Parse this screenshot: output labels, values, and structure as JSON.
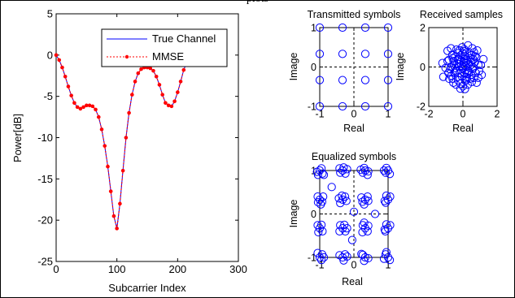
{
  "caption": "plots",
  "chart_data": [
    {
      "type": "line",
      "xlabel": "Subcarrier Index",
      "ylabel": "Power[dB]",
      "xlim": [
        0,
        300
      ],
      "ylim": [
        -25,
        5
      ],
      "xticks": [
        "0",
        "100",
        "200",
        "300"
      ],
      "yticks": [
        "5",
        "0",
        "-5",
        "-10",
        "-15",
        "-20",
        "-25"
      ],
      "legend_position": "top-right",
      "series": [
        {
          "name": "True Channel",
          "color": "#0000ff",
          "style": "solid",
          "x": [
            0,
            5,
            10,
            15,
            20,
            25,
            30,
            35,
            40,
            45,
            50,
            55,
            60,
            65,
            70,
            75,
            80,
            85,
            90,
            95,
            100,
            105,
            110,
            115,
            120,
            125,
            130,
            135,
            140,
            145,
            150,
            155,
            160,
            165,
            170,
            175,
            180,
            185,
            190,
            195,
            200,
            205,
            210,
            215,
            220
          ],
          "y": [
            0,
            -0.6,
            -1.5,
            -2.6,
            -3.8,
            -4.9,
            -5.8,
            -6.3,
            -6.5,
            -6.3,
            -6.1,
            -6.1,
            -6.2,
            -6.6,
            -7.5,
            -9,
            -11,
            -13.5,
            -16.5,
            -19.5,
            -21,
            -18,
            -14,
            -10,
            -7,
            -4.8,
            -3.2,
            -2.2,
            -1.7,
            -1.5,
            -1.5,
            -1.6,
            -1.9,
            -2.6,
            -3.6,
            -4.8,
            -5.8,
            -6.1,
            -6.2,
            -5.6,
            -4.5,
            -3.2,
            -1.8,
            -0.9,
            0
          ]
        },
        {
          "name": "MMSE",
          "color": "#ff0000",
          "style": "dotted-with-markers",
          "x": [
            0,
            5,
            10,
            15,
            20,
            25,
            30,
            35,
            40,
            45,
            50,
            55,
            60,
            65,
            70,
            75,
            80,
            85,
            90,
            95,
            100,
            105,
            110,
            115,
            120,
            125,
            130,
            135,
            140,
            145,
            150,
            155,
            160,
            165,
            170,
            175,
            180,
            185,
            190,
            195,
            200,
            205,
            210,
            215,
            220
          ],
          "y": [
            0,
            -0.6,
            -1.5,
            -2.6,
            -3.8,
            -4.9,
            -5.8,
            -6.3,
            -6.5,
            -6.3,
            -6.1,
            -6.1,
            -6.2,
            -6.6,
            -7.5,
            -9,
            -11,
            -13.5,
            -16.5,
            -19.5,
            -21,
            -18,
            -14,
            -10,
            -7,
            -4.8,
            -3.2,
            -2.2,
            -1.7,
            -1.5,
            -1.5,
            -1.6,
            -1.9,
            -2.6,
            -3.6,
            -4.8,
            -5.8,
            -6.1,
            -6.2,
            -5.6,
            -4.5,
            -3.2,
            -1.8,
            -0.9,
            0
          ]
        }
      ]
    },
    {
      "type": "scatter",
      "title": "Transmitted symbols",
      "xlabel": "Real",
      "ylabel": "Image",
      "xlim": [
        -1,
        1
      ],
      "ylim": [
        -1,
        1
      ],
      "xticks": [
        "-1",
        "0",
        "1"
      ],
      "yticks": [
        "1",
        "0",
        "-1"
      ],
      "color": "#0000ff",
      "points": [
        [
          -1,
          1
        ],
        [
          -0.333,
          1
        ],
        [
          0.333,
          1
        ],
        [
          1,
          1
        ],
        [
          -1,
          0.333
        ],
        [
          -0.333,
          0.333
        ],
        [
          0.333,
          0.333
        ],
        [
          1,
          0.333
        ],
        [
          -1,
          -0.333
        ],
        [
          -0.333,
          -0.333
        ],
        [
          0.333,
          -0.333
        ],
        [
          1,
          -0.333
        ],
        [
          -1,
          -1
        ],
        [
          -0.333,
          -1
        ],
        [
          0.333,
          -1
        ],
        [
          1,
          -1
        ]
      ]
    },
    {
      "type": "scatter",
      "title": "Received samples",
      "xlabel": "Real",
      "ylabel": "Image",
      "xlim": [
        -2,
        2
      ],
      "ylim": [
        -2,
        2
      ],
      "xticks": [
        "-2",
        "0",
        "2"
      ],
      "yticks": [
        "2",
        "0",
        "-2"
      ],
      "color": "#0000ff",
      "points": [
        [
          0.03,
          0.12
        ],
        [
          -0.25,
          0.4
        ],
        [
          0.32,
          -0.18
        ],
        [
          -0.41,
          -0.22
        ],
        [
          0.15,
          0.55
        ],
        [
          -0.06,
          -0.48
        ],
        [
          0.46,
          0.26
        ],
        [
          -0.52,
          0.08
        ],
        [
          0.22,
          -0.62
        ],
        [
          -0.3,
          0.7
        ],
        [
          0.6,
          -0.02
        ],
        [
          -0.68,
          -0.44
        ],
        [
          0.08,
          0.9
        ],
        [
          -0.14,
          -0.85
        ],
        [
          0.78,
          0.5
        ],
        [
          -0.82,
          0.36
        ],
        [
          0.52,
          -0.76
        ],
        [
          -0.56,
          -0.8
        ],
        [
          1.05,
          0.1
        ],
        [
          -1.02,
          -0.05
        ],
        [
          0.12,
          -1.12
        ],
        [
          0.3,
          1.1
        ],
        [
          -0.9,
          0.82
        ],
        [
          0.9,
          -0.55
        ],
        [
          0.4,
          0.05
        ],
        [
          -0.2,
          0.02
        ],
        [
          0.1,
          -0.3
        ],
        [
          -0.35,
          0.18
        ],
        [
          0.25,
          0.32
        ],
        [
          -0.12,
          0.6
        ],
        [
          0.02,
          -0.08
        ],
        [
          0.65,
          0.75
        ],
        [
          -0.75,
          -0.12
        ],
        [
          0.48,
          -0.4
        ],
        [
          -0.45,
          0.52
        ],
        [
          0.18,
          0.22
        ],
        [
          -0.6,
          -0.6
        ],
        [
          0.7,
          0.25
        ],
        [
          -0.28,
          -0.68
        ],
        [
          0.36,
          0.72
        ],
        [
          -0.9,
          0.3
        ],
        [
          0.95,
          -0.2
        ],
        [
          -0.05,
          1.0
        ],
        [
          0.0,
          -0.98
        ],
        [
          0.58,
          -0.1
        ],
        [
          -0.38,
          0.88
        ],
        [
          0.84,
          0.84
        ],
        [
          -1.15,
          -0.5
        ],
        [
          1.2,
          0.4
        ],
        [
          0.28,
          -0.9
        ],
        [
          -0.62,
          0.62
        ],
        [
          0.44,
          0.44
        ],
        [
          -0.18,
          -0.3
        ],
        [
          0.06,
          0.4
        ],
        [
          -0.5,
          -0.3
        ],
        [
          0.75,
          -0.3
        ],
        [
          -0.7,
          0.0
        ],
        [
          0.2,
          -0.5
        ],
        [
          -0.1,
          0.3
        ],
        [
          0.5,
          0.6
        ],
        [
          -0.3,
          -0.5
        ],
        [
          0.0,
          0.7
        ],
        [
          0.9,
          0.1
        ],
        [
          -0.85,
          -0.3
        ],
        [
          0.3,
          -0.2
        ],
        [
          -0.25,
          0.15
        ],
        [
          0.6,
          0.4
        ],
        [
          -0.55,
          0.3
        ],
        [
          0.1,
          0.8
        ],
        [
          -0.4,
          -0.9
        ],
        [
          1.1,
          -0.4
        ],
        [
          -1.2,
          0.2
        ],
        [
          0.15,
          -0.7
        ],
        [
          0.55,
          0.95
        ],
        [
          -0.7,
          0.95
        ],
        [
          0.8,
          -0.8
        ],
        [
          -0.15,
          -1.1
        ],
        [
          0.35,
          0.15
        ],
        [
          -0.45,
          -0.05
        ],
        [
          0.05,
          0.25
        ],
        [
          0.25,
          -0.35
        ],
        [
          -0.3,
          0.4
        ],
        [
          0.4,
          -0.6
        ],
        [
          -0.6,
          0.45
        ],
        [
          0.65,
          -0.55
        ],
        [
          -0.2,
          0.85
        ],
        [
          0.7,
          0.55
        ],
        [
          -0.8,
          -0.6
        ],
        [
          0.0,
          0.0
        ],
        [
          0.15,
          0.05
        ]
      ]
    },
    {
      "type": "scatter",
      "title": "Equalized symbols",
      "xlabel": "Real",
      "ylabel": "Image",
      "xlim": [
        -1,
        1
      ],
      "ylim": [
        -1,
        1
      ],
      "xticks": [
        "-1",
        "0",
        "1"
      ],
      "yticks": [
        "1",
        "0",
        "-1"
      ],
      "color": "#0000ff",
      "points": [
        [
          -1,
          1
        ],
        [
          -0.92,
          0.93
        ],
        [
          -1.05,
          0.9
        ],
        [
          -0.95,
          1.05
        ],
        [
          -1.08,
          0.97
        ],
        [
          -0.88,
          0.9
        ],
        [
          -0.33,
          1
        ],
        [
          -0.25,
          0.93
        ],
        [
          -0.4,
          0.95
        ],
        [
          -0.3,
          1.07
        ],
        [
          -0.2,
          1.03
        ],
        [
          -0.42,
          1.05
        ],
        [
          0.33,
          1
        ],
        [
          0.26,
          0.95
        ],
        [
          0.42,
          0.98
        ],
        [
          0.3,
          1.06
        ],
        [
          0.4,
          0.9
        ],
        [
          0.2,
          1.02
        ],
        [
          1,
          1
        ],
        [
          0.93,
          0.95
        ],
        [
          1.05,
          0.92
        ],
        [
          0.95,
          1.06
        ],
        [
          0.88,
          1.0
        ],
        [
          -1,
          0.33
        ],
        [
          -0.93,
          0.28
        ],
        [
          -1.06,
          0.4
        ],
        [
          -0.97,
          0.22
        ],
        [
          -0.9,
          0.4
        ],
        [
          -1.05,
          0.27
        ],
        [
          -0.33,
          0.33
        ],
        [
          -0.4,
          0.25
        ],
        [
          -0.26,
          0.4
        ],
        [
          -0.35,
          0.42
        ],
        [
          -0.22,
          0.3
        ],
        [
          -0.44,
          0.36
        ],
        [
          0.33,
          0.33
        ],
        [
          0.25,
          0.28
        ],
        [
          0.4,
          0.4
        ],
        [
          0.3,
          0.22
        ],
        [
          0.42,
          0.3
        ],
        [
          0.22,
          0.38
        ],
        [
          1,
          0.33
        ],
        [
          0.93,
          0.26
        ],
        [
          1.06,
          0.4
        ],
        [
          0.95,
          0.42
        ],
        [
          0.9,
          0.3
        ],
        [
          -1,
          -0.33
        ],
        [
          -0.92,
          -0.4
        ],
        [
          -1.06,
          -0.26
        ],
        [
          -0.95,
          -0.25
        ],
        [
          -1.04,
          -0.42
        ],
        [
          -0.33,
          -0.33
        ],
        [
          -0.25,
          -0.4
        ],
        [
          -0.4,
          -0.26
        ],
        [
          -0.28,
          -0.25
        ],
        [
          -0.42,
          -0.4
        ],
        [
          -0.2,
          -0.33
        ],
        [
          0.33,
          -0.33
        ],
        [
          0.4,
          -0.4
        ],
        [
          0.26,
          -0.26
        ],
        [
          0.25,
          -0.42
        ],
        [
          0.42,
          -0.27
        ],
        [
          0.3,
          -0.2
        ],
        [
          1,
          -0.33
        ],
        [
          0.92,
          -0.4
        ],
        [
          1.06,
          -0.26
        ],
        [
          0.95,
          -0.24
        ],
        [
          0.9,
          -0.36
        ],
        [
          -1,
          -1
        ],
        [
          -0.93,
          -0.93
        ],
        [
          -1.06,
          -0.9
        ],
        [
          -0.95,
          -1.06
        ],
        [
          -0.88,
          -1.0
        ],
        [
          -0.33,
          -1
        ],
        [
          -0.26,
          -0.93
        ],
        [
          -0.42,
          -0.95
        ],
        [
          -0.3,
          -1.07
        ],
        [
          -0.2,
          -0.98
        ],
        [
          0.33,
          -1
        ],
        [
          0.26,
          -0.94
        ],
        [
          0.42,
          -1.02
        ],
        [
          0.3,
          -1.08
        ],
        [
          0.22,
          -0.92
        ],
        [
          1,
          -1
        ],
        [
          0.93,
          -0.93
        ],
        [
          1.05,
          -1.06
        ],
        [
          0.95,
          -0.88
        ],
        [
          0.88,
          -1.03
        ],
        [
          0.0,
          0.05
        ],
        [
          -0.05,
          -0.6
        ],
        [
          0.62,
          0.0
        ],
        [
          -0.65,
          0.62
        ]
      ]
    }
  ]
}
